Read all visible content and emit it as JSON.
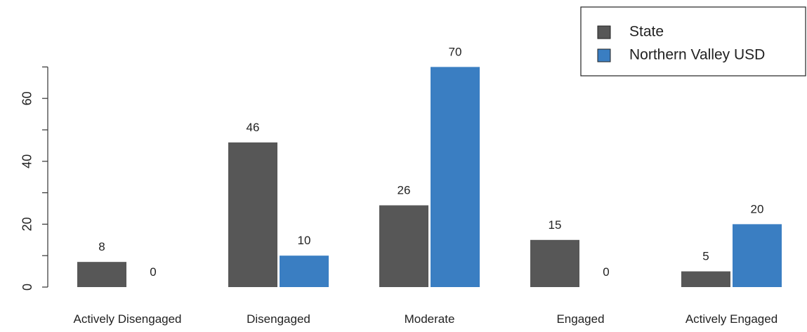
{
  "chart_data": {
    "type": "bar",
    "categories": [
      "Actively Disengaged",
      "Disengaged",
      "Moderate",
      "Engaged",
      "Actively Engaged"
    ],
    "series": [
      {
        "name": "State",
        "values": [
          8,
          46,
          26,
          15,
          5
        ],
        "color": "#575757"
      },
      {
        "name": "Northern Valley USD",
        "values": [
          0,
          10,
          70,
          0,
          20
        ],
        "color": "#3a7ec2"
      }
    ],
    "y_ticks": [
      0,
      20,
      40,
      60
    ],
    "ylim": [
      0,
      70
    ],
    "legend_position": "top-right",
    "grid": false,
    "title": "",
    "xlabel": "",
    "ylabel": ""
  }
}
